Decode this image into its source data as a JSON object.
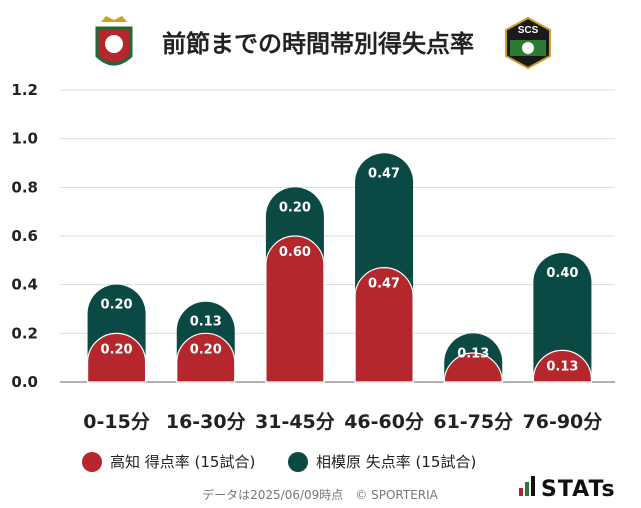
{
  "title": "前節までの時間帯別得失点率",
  "home_badge_alt": "高知",
  "away_badge_text": "SCS",
  "colors": {
    "scored": "#b5262d",
    "conceded": "#0b4a44",
    "grid": "#dddddd",
    "axis": "#999999"
  },
  "chart_data": {
    "type": "bar",
    "stacked": true,
    "categories": [
      "0-15分",
      "16-30分",
      "31-45分",
      "46-60分",
      "61-75分",
      "76-90分"
    ],
    "series": [
      {
        "name": "高知 得点率 (15試合)",
        "values": [
          0.2,
          0.2,
          0.6,
          0.47,
          0.07,
          0.13
        ],
        "labels": [
          "0.20",
          "0.20",
          "0.60",
          "0.47",
          "",
          "0.13"
        ]
      },
      {
        "name": "相模原 失点率 (15試合)",
        "values": [
          0.2,
          0.13,
          0.2,
          0.47,
          0.13,
          0.4
        ],
        "labels": [
          "0.20",
          "0.13",
          "0.20",
          "0.47",
          "0.13",
          "0.40"
        ]
      }
    ],
    "ylim": [
      0,
      1.2
    ],
    "yticks": [
      "0.0",
      "0.2",
      "0.4",
      "0.6",
      "0.8",
      "1.0",
      "1.2"
    ],
    "grid": true,
    "legend_position": "bottom-left"
  },
  "footer": "データは2025/06/09時点　© SPORTERIA",
  "brand": "STATs"
}
